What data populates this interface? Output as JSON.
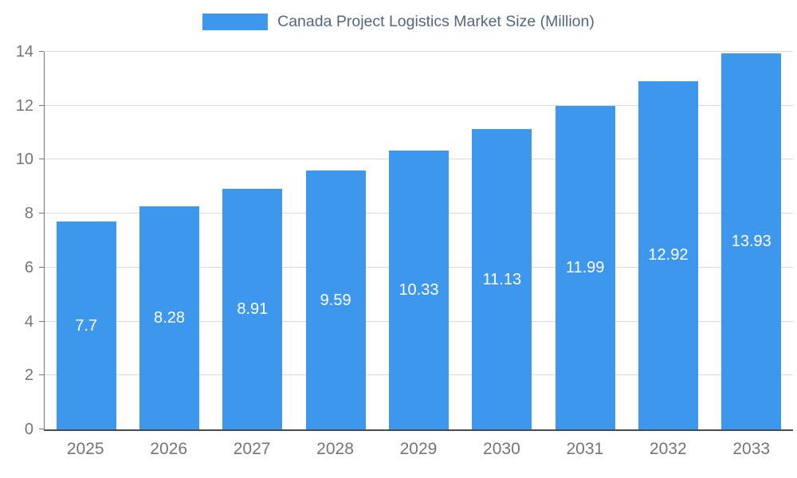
{
  "chart_data": {
    "type": "bar",
    "title": "Canada Project Logistics Market Size (Million)",
    "categories": [
      "2025",
      "2026",
      "2027",
      "2028",
      "2029",
      "2030",
      "2031",
      "2032",
      "2033"
    ],
    "values": [
      7.7,
      8.28,
      8.91,
      9.59,
      10.33,
      11.13,
      11.99,
      12.92,
      13.93
    ],
    "value_labels": [
      "7.7",
      "8.28",
      "8.91",
      "9.59",
      "10.33",
      "11.13",
      "11.99",
      "12.92",
      "13.93"
    ],
    "xlabel": "",
    "ylabel": "",
    "ylim": [
      0,
      14
    ],
    "y_ticks": [
      0,
      2,
      4,
      6,
      8,
      10,
      12,
      14
    ],
    "grid": true,
    "legend_position": "top",
    "colors": {
      "bar": "#3D97EC",
      "bar_label": "#FFFFFF",
      "legend_text": "#54667E",
      "axis_text": "#757575",
      "gridline": "#D9D9D9",
      "axis_line": "#4A4A4A"
    }
  }
}
